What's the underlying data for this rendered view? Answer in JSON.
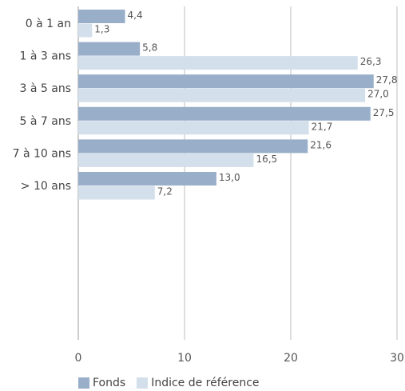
{
  "chart_data": {
    "type": "bar",
    "orientation": "horizontal",
    "categories": [
      "0 à 1 an",
      "1 à 3 ans",
      "3 à 5 ans",
      "5 à 7 ans",
      "7 à 10 ans",
      "> 10 ans"
    ],
    "series": [
      {
        "name": "Fonds",
        "color": "#98aec9",
        "values": [
          4.4,
          5.8,
          27.8,
          27.5,
          21.6,
          13.0
        ],
        "labels": [
          "4,4",
          "5,8",
          "27,8",
          "27,5",
          "21,6",
          "13,0"
        ]
      },
      {
        "name": "Indice de référence",
        "color": "#d3dfeb",
        "values": [
          1.3,
          26.3,
          27.0,
          21.7,
          16.5,
          7.2
        ],
        "labels": [
          "1,3",
          "26,3",
          "27,0",
          "21,7",
          "16,5",
          "7,2"
        ]
      }
    ],
    "xlim": [
      0,
      30
    ],
    "xticks": [
      0,
      10,
      20,
      30
    ],
    "xtick_labels": [
      "0",
      "10",
      "20",
      "30"
    ],
    "grid": true,
    "legend_position": "bottom-left"
  }
}
